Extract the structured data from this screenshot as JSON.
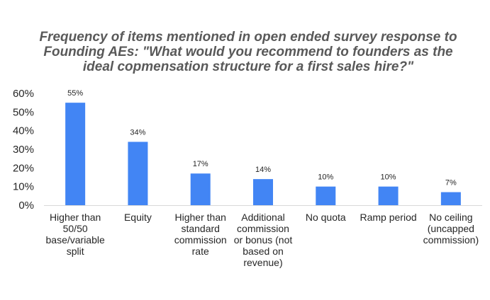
{
  "chart_data": {
    "type": "bar",
    "title": "Frequency of items mentioned in open ended survey response to Founding AEs: \"What would you recommend to founders as the ideal copmensation structure for a first sales hire?\"",
    "categories": [
      [
        "Higher than",
        "50/50",
        "base/variable",
        "split"
      ],
      [
        "Equity"
      ],
      [
        "Higher than",
        "standard",
        "commission",
        "rate"
      ],
      [
        "Additional",
        "commission",
        "or bonus (not",
        "based on",
        "revenue)"
      ],
      [
        "No quota"
      ],
      [
        "Ramp period"
      ],
      [
        "No ceiling",
        "(uncapped",
        "commission)"
      ]
    ],
    "values": [
      55,
      34,
      17,
      14,
      10,
      10,
      7
    ],
    "data_labels": [
      "55%",
      "34%",
      "17%",
      "14%",
      "10%",
      "10%",
      "7%"
    ],
    "y_ticks": [
      "0%",
      "10%",
      "20%",
      "30%",
      "40%",
      "50%",
      "60%"
    ],
    "ylim": [
      0,
      60
    ],
    "grid": false,
    "legend": false,
    "bar_color": "#4285f4",
    "axis_color": "#d9d9d9"
  }
}
